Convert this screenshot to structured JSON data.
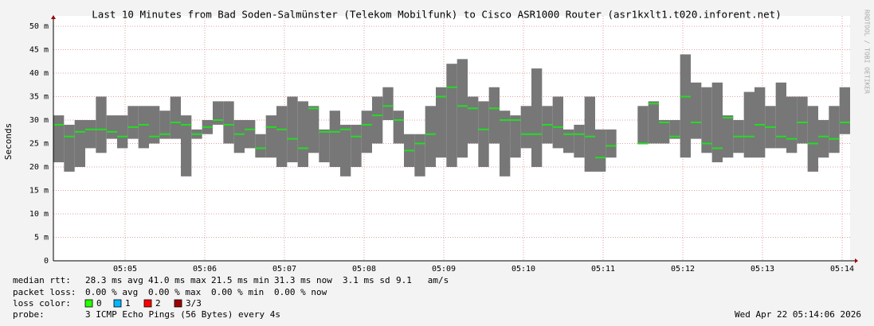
{
  "chart_data": {
    "type": "smokeping",
    "title": "Last 10 Minutes from Bad Soden-Salmünster (Telekom Mobilfunk) to Cisco ASR1000 Router (asr1kxlt1.t020.inforent.net)",
    "y_label": "Seconds",
    "credit": "RRDTOOL / TOBI OETIKER",
    "grid": true,
    "xlim": [
      18246,
      18846
    ],
    "xticks": [
      {
        "value": 18300,
        "label": "05:05"
      },
      {
        "value": 18360,
        "label": "05:06"
      },
      {
        "value": 18420,
        "label": "05:07"
      },
      {
        "value": 18480,
        "label": "05:08"
      },
      {
        "value": 18540,
        "label": "05:09"
      },
      {
        "value": 18600,
        "label": "05:10"
      },
      {
        "value": 18660,
        "label": "05:11"
      },
      {
        "value": 18720,
        "label": "05:12"
      },
      {
        "value": 18780,
        "label": "05:13"
      },
      {
        "value": 18840,
        "label": "05:14"
      }
    ],
    "ylim": [
      0,
      50
    ],
    "yticks": [
      0,
      {
        "value": 5,
        "label": "5 m"
      },
      {
        "value": 10,
        "label": "10 m"
      },
      {
        "value": 15,
        "label": "15 m"
      },
      {
        "value": 20,
        "label": "20 m"
      },
      {
        "value": 25,
        "label": "25 m"
      },
      {
        "value": 30,
        "label": "30 m"
      },
      {
        "value": 35,
        "label": "35 m"
      },
      {
        "value": 40,
        "label": "40 m"
      },
      {
        "value": 45,
        "label": "45 m"
      },
      {
        "value": 50,
        "label": "50 m"
      }
    ],
    "x": [
      18246,
      18254,
      18262,
      18270,
      18278,
      18286,
      18294,
      18302,
      18310,
      18318,
      18326,
      18334,
      18342,
      18350,
      18358,
      18366,
      18374,
      18382,
      18390,
      18398,
      18406,
      18414,
      18422,
      18430,
      18438,
      18446,
      18454,
      18462,
      18470,
      18478,
      18486,
      18494,
      18502,
      18510,
      18518,
      18526,
      18534,
      18542,
      18550,
      18558,
      18566,
      18574,
      18582,
      18590,
      18598,
      18606,
      18614,
      18622,
      18630,
      18638,
      18646,
      18654,
      18662,
      18670,
      18678,
      18686,
      18694,
      18702,
      18710,
      18718,
      18726,
      18734,
      18742,
      18750,
      18758,
      18766,
      18774,
      18782,
      18790,
      18798,
      18806,
      18814,
      18822,
      18830,
      18838
    ],
    "smoke": {
      "color": "#777777",
      "low": [
        21,
        19,
        20,
        24,
        23,
        26,
        24,
        26,
        24,
        25,
        26,
        26,
        18,
        26,
        27,
        29,
        25,
        23,
        24,
        22,
        22,
        20,
        21,
        20,
        23,
        21,
        20,
        18,
        20,
        23,
        25,
        30,
        25,
        20,
        18,
        20,
        22,
        20,
        22,
        25,
        20,
        25,
        18,
        22,
        24,
        20,
        25,
        24,
        23,
        22,
        19,
        19,
        22,
        null,
        null,
        25,
        25,
        25,
        26,
        22,
        26,
        23,
        21,
        22,
        23,
        22,
        22,
        24,
        24,
        23,
        25,
        19,
        22,
        23,
        27
      ],
      "high": [
        31,
        29,
        30,
        30,
        35,
        31,
        31,
        33,
        33,
        33,
        32,
        35,
        31,
        28,
        30,
        34,
        34,
        30,
        30,
        27,
        31,
        33,
        35,
        34,
        33,
        28,
        32,
        29,
        29,
        32,
        35,
        37,
        32,
        27,
        27,
        33,
        37,
        42,
        43,
        35,
        34,
        37,
        32,
        31,
        33,
        41,
        33,
        35,
        28,
        29,
        35,
        28,
        28,
        null,
        null,
        33,
        34,
        30,
        30,
        44,
        38,
        37,
        38,
        31,
        30,
        36,
        37,
        33,
        38,
        35,
        35,
        33,
        30,
        33,
        37
      ]
    },
    "series": [
      {
        "name": "median rtt:",
        "color": "#22dd22",
        "values": [
          29,
          26.5,
          27.5,
          28,
          28,
          27.5,
          26.5,
          28.5,
          29,
          26.5,
          27,
          29.5,
          29,
          27,
          28.5,
          30,
          29,
          27,
          28,
          24,
          28.5,
          28,
          26,
          24,
          32.5,
          27.5,
          27.5,
          28,
          26.5,
          29,
          31,
          33,
          30,
          23.5,
          25,
          27,
          35,
          37,
          33,
          32.5,
          28,
          32.5,
          30,
          30,
          27,
          27,
          29,
          28.5,
          27,
          27,
          26.5,
          22,
          24.5,
          null,
          null,
          25,
          33.5,
          29.5,
          26.5,
          35,
          29.5,
          25,
          24,
          30.5,
          26.5,
          26.5,
          29,
          28.5,
          26.5,
          26,
          29.5,
          25,
          26.5,
          26,
          29.5
        ]
      }
    ],
    "rtt_stats": [
      "28.3 ms avg",
      "41.0 ms max",
      "21.5 ms min",
      "31.3 ms now",
      "3.1 ms sd",
      "9.1   am/s"
    ],
    "packet_loss": {
      "label": "packet loss:",
      "stats": [
        "0.00 % avg",
        "0.00 % max",
        "0.00 % min",
        "0.00 % now"
      ]
    },
    "loss_color": {
      "label": "loss color:",
      "items": [
        {
          "label": "0",
          "color": "#26ff00"
        },
        {
          "label": "1",
          "color": "#00b8ff"
        },
        {
          "label": "2",
          "color": "#ff0000"
        },
        {
          "label": "3/3",
          "color": "#a00000"
        }
      ]
    },
    "probe": {
      "label": "probe:",
      "text": "3 ICMP Echo Pings (56 Bytes) every 4s"
    },
    "timestamp": "Wed Apr 22 05:14:06 2026"
  }
}
